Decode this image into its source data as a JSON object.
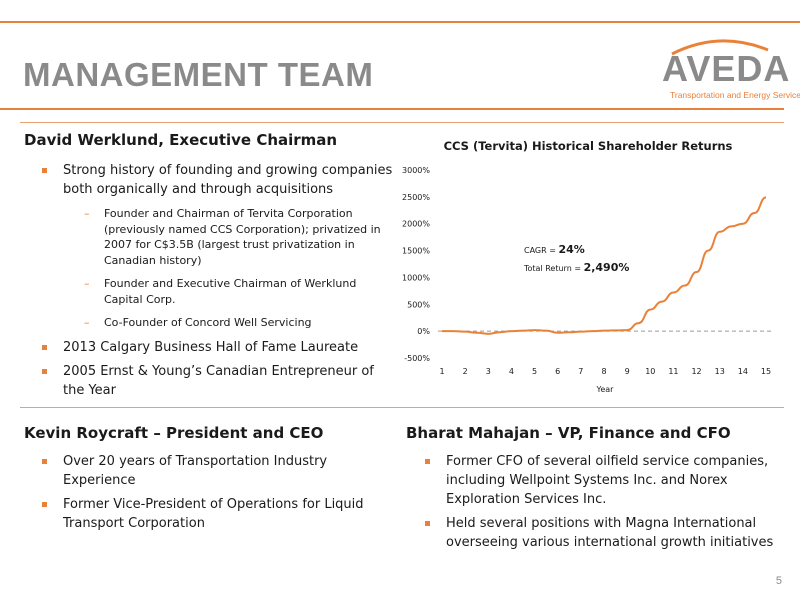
{
  "slide": {
    "title": "MANAGEMENT TEAM",
    "page_number": "5"
  },
  "logo": {
    "wordmark": "AVEDA",
    "tagline": "Transportation and Energy Services",
    "accent_color": "#e8823a",
    "gray_color": "#8a8a8a"
  },
  "werklund": {
    "heading": "David Werklund, Executive Chairman",
    "bullets": [
      "Strong history of founding and growing companies both organically and through acquisitions",
      "2013 Calgary Business Hall of Fame Laureate",
      "2005 Ernst & Young’s Canadian Entrepreneur of the Year"
    ],
    "sub_bullets": [
      "Founder and Chairman of Tervita Corporation (previously named CCS Corporation); privatized in 2007 for C$3.5B (largest trust privatization in Canadian history)",
      "Founder and Executive Chairman of Werklund Capital Corp.",
      "Co-Founder of Concord Well Servicing"
    ]
  },
  "roycraft": {
    "heading": "Kevin Roycraft – President and CEO",
    "bullets": [
      "Over 20 years of Transportation Industry Experience",
      "Former Vice-President of Operations for Liquid Transport Corporation"
    ]
  },
  "mahajan": {
    "heading": "Bharat Mahajan – VP, Finance and CFO",
    "bullets": [
      "Former CFO of several oilfield service companies, including Wellpoint Systems Inc. and Norex Exploration Services Inc.",
      "Held several positions with Magna International overseeing various international growth initiatives"
    ]
  },
  "chart_data": {
    "type": "line",
    "title": "CCS (Tervita) Historical Shareholder Returns",
    "xlabel": "Year",
    "ylabel": "",
    "categories": [
      "1",
      "2",
      "3",
      "4",
      "5",
      "6",
      "7",
      "8",
      "9",
      "10",
      "11",
      "12",
      "13",
      "14",
      "15"
    ],
    "x": [
      1,
      1.5,
      2,
      2.5,
      3,
      3.5,
      4,
      4.5,
      5,
      5.5,
      6,
      6.5,
      7,
      7.5,
      8,
      8.5,
      9,
      9.5,
      10,
      10.5,
      11,
      11.5,
      12,
      12.5,
      13,
      13.5,
      14,
      14.5,
      15
    ],
    "series": [
      {
        "values": [
          0,
          0,
          -10,
          -30,
          -50,
          -20,
          0,
          10,
          20,
          10,
          -30,
          -20,
          -10,
          0,
          10,
          15,
          20,
          150,
          400,
          550,
          720,
          850,
          1100,
          1500,
          1850,
          1950,
          2000,
          2200,
          2490
        ],
        "color": "#e8823a"
      }
    ],
    "ylim": [
      -500,
      3000
    ],
    "y_ticks": [
      "-500%",
      "0%",
      "500%",
      "1000%",
      "1500%",
      "2000%",
      "2500%",
      "3000%"
    ],
    "y_tick_values": [
      -500,
      0,
      500,
      1000,
      1500,
      2000,
      2500,
      3000
    ],
    "zero_line": "dashed",
    "grid": false,
    "annotations": {
      "cagr_label": "CAGR = ",
      "cagr_value": "24%",
      "return_label": "Total Return = ",
      "return_value": "2,490%"
    }
  }
}
